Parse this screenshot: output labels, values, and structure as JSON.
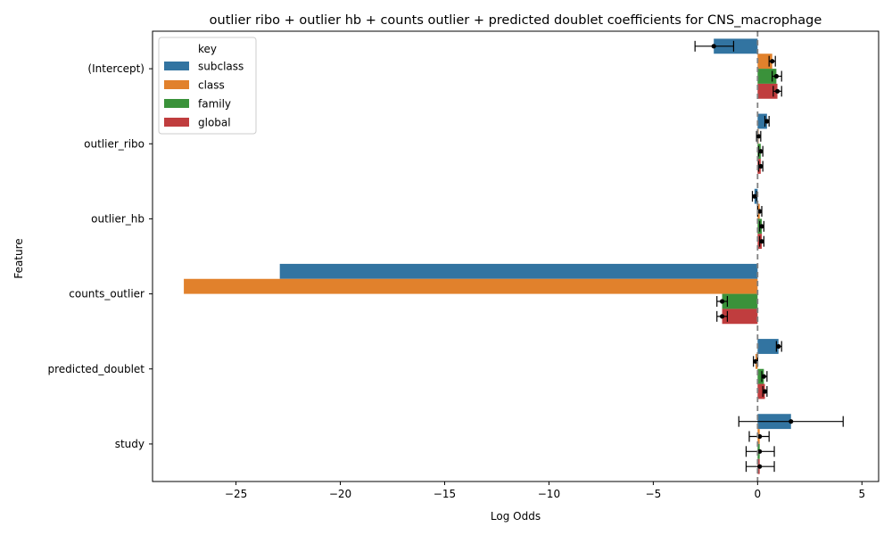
{
  "chart_data": {
    "type": "bar",
    "orientation": "horizontal",
    "title": "outlier ribo + outlier hb + counts outlier + predicted doublet coefficients for CNS_macrophage",
    "xlabel": "Log Odds",
    "ylabel": "Feature",
    "xlim": [
      -29.0,
      5.8
    ],
    "xticks": [
      -25,
      -20,
      -15,
      -10,
      -5,
      0,
      5
    ],
    "xtick_labels": [
      "−25",
      "−20",
      "−15",
      "−10",
      "−5",
      "0",
      "5"
    ],
    "reference_line": 0,
    "grid": false,
    "legend": {
      "title": "key",
      "placement": "top-left"
    },
    "categories": [
      "(Intercept)",
      "outlier_ribo",
      "outlier_hb",
      "counts_outlier",
      "predicted_doublet",
      "study"
    ],
    "series": [
      {
        "name": "subclass",
        "color": "#3274a1",
        "values": [
          -2.1,
          0.45,
          -0.15,
          -22.9,
          1.0,
          1.6
        ],
        "lower": [
          -3.0,
          0.35,
          -0.25,
          null,
          0.9,
          -0.9
        ],
        "upper": [
          -1.15,
          0.55,
          -0.05,
          null,
          1.15,
          4.1
        ]
      },
      {
        "name": "class",
        "color": "#e1812c",
        "values": [
          0.7,
          0.05,
          0.1,
          -27.5,
          -0.1,
          0.1
        ],
        "lower": [
          0.55,
          -0.05,
          0.0,
          null,
          -0.2,
          -0.4
        ],
        "upper": [
          0.85,
          0.15,
          0.2,
          null,
          0.0,
          0.55
        ]
      },
      {
        "name": "family",
        "color": "#3a923a",
        "values": [
          0.9,
          0.15,
          0.2,
          -1.7,
          0.3,
          0.1
        ],
        "lower": [
          0.7,
          0.05,
          0.1,
          -1.95,
          0.2,
          -0.55
        ],
        "upper": [
          1.15,
          0.25,
          0.3,
          -1.45,
          0.45,
          0.8
        ]
      },
      {
        "name": "global",
        "color": "#c03d3e",
        "values": [
          0.95,
          0.15,
          0.2,
          -1.7,
          0.35,
          0.1
        ],
        "lower": [
          0.75,
          0.05,
          0.1,
          -1.95,
          0.25,
          -0.55
        ],
        "upper": [
          1.15,
          0.25,
          0.3,
          -1.45,
          0.45,
          0.8
        ]
      }
    ]
  }
}
